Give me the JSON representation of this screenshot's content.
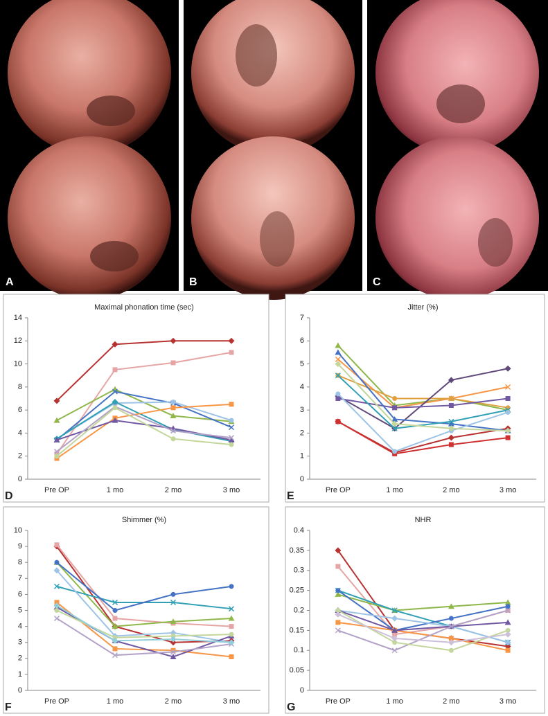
{
  "photos": [
    {
      "label": "A"
    },
    {
      "label": "B"
    },
    {
      "label": "C"
    }
  ],
  "chart_data": [
    {
      "type": "line",
      "panel": "D",
      "title": "Maximal phonation time (sec)",
      "categories": [
        "Pre OP",
        "1 mo",
        "2 mo",
        "3 mo"
      ],
      "ylim": [
        0,
        14
      ],
      "yticks": [
        0,
        2,
        4,
        6,
        8,
        10,
        12,
        14
      ],
      "grid": false,
      "series": [
        {
          "color": "#b83232",
          "values": [
            6.8,
            11.7,
            12,
            12
          ]
        },
        {
          "color": "#e6a5a5",
          "values": [
            2.2,
            9.5,
            10.1,
            11
          ]
        },
        {
          "color": "#8fb74a",
          "values": [
            5.1,
            7.8,
            5.5,
            5.0
          ]
        },
        {
          "color": "#4472c4",
          "values": [
            3.4,
            7.6,
            6.6,
            4.5
          ]
        },
        {
          "color": "#9dc3e6",
          "values": [
            3.5,
            6.6,
            6.7,
            5.1
          ]
        },
        {
          "color": "#31a0b5",
          "values": [
            3.5,
            6.7,
            4.3,
            3.3
          ]
        },
        {
          "color": "#f79646",
          "values": [
            1.8,
            5.3,
            6.2,
            6.5
          ]
        },
        {
          "color": "#7058a3",
          "values": [
            3.4,
            5.1,
            4.4,
            3.4
          ]
        },
        {
          "color": "#b3a2c7",
          "values": [
            2.4,
            6.3,
            4.2,
            3.6
          ]
        },
        {
          "color": "#c3d69b",
          "values": [
            2.0,
            6.2,
            3.5,
            3.0
          ]
        }
      ]
    },
    {
      "type": "line",
      "panel": "E",
      "title": "Jitter (%)",
      "categories": [
        "Pre OP",
        "1 mo",
        "2 mo",
        "3 mo"
      ],
      "ylim": [
        0,
        7
      ],
      "yticks": [
        0,
        1,
        2,
        3,
        4,
        5,
        6,
        7
      ],
      "grid": false,
      "series": [
        {
          "color": "#b83232",
          "values": [
            2.5,
            1.15,
            1.8,
            2.2
          ]
        },
        {
          "color": "#d03030",
          "values": [
            2.5,
            1.1,
            1.5,
            1.8
          ]
        },
        {
          "color": "#8fb74a",
          "values": [
            5.8,
            3.2,
            3.5,
            3.0
          ]
        },
        {
          "color": "#f79646",
          "values": [
            5.2,
            3.1,
            3.5,
            4.0
          ]
        },
        {
          "color": "#e0a040",
          "values": [
            4.5,
            3.5,
            3.5,
            3.1
          ]
        },
        {
          "color": "#604a7b",
          "values": [
            3.6,
            2.2,
            4.3,
            4.8
          ]
        },
        {
          "color": "#7058a3",
          "values": [
            3.5,
            3.1,
            3.2,
            3.5
          ]
        },
        {
          "color": "#4472c4",
          "values": [
            5.5,
            2.6,
            2.4,
            2.1
          ]
        },
        {
          "color": "#31a0b5",
          "values": [
            4.5,
            2.2,
            2.5,
            3.0
          ]
        },
        {
          "color": "#9dc3e6",
          "values": [
            3.7,
            1.2,
            2.1,
            2.9
          ]
        },
        {
          "color": "#c3d69b",
          "values": [
            5.0,
            2.4,
            2.2,
            2.1
          ]
        }
      ]
    },
    {
      "type": "line",
      "panel": "F",
      "title": "Shimmer (%)",
      "categories": [
        "Pre OP",
        "1 mo",
        "2 mo",
        "3 mo"
      ],
      "ylim": [
        0,
        10
      ],
      "yticks": [
        0,
        1,
        2,
        3,
        4,
        5,
        6,
        7,
        8,
        9,
        10
      ],
      "grid": false,
      "series": [
        {
          "color": "#b83232",
          "values": [
            9.0,
            4.0,
            3.0,
            3.1
          ]
        },
        {
          "color": "#e6a5a5",
          "values": [
            9.1,
            4.5,
            4.2,
            4.0
          ]
        },
        {
          "color": "#8fb74a",
          "values": [
            8.0,
            4.0,
            4.3,
            4.5
          ]
        },
        {
          "color": "#31a0b5",
          "values": [
            6.5,
            5.5,
            5.5,
            5.1
          ]
        },
        {
          "color": "#4472c4",
          "values": [
            8.0,
            5.0,
            6.0,
            6.5
          ]
        },
        {
          "color": "#9dc3e6",
          "values": [
            7.5,
            3.4,
            3.6,
            3.0
          ]
        },
        {
          "color": "#f79646",
          "values": [
            5.5,
            2.6,
            2.5,
            2.1
          ]
        },
        {
          "color": "#7058a3",
          "values": [
            5.2,
            3.1,
            2.1,
            3.4
          ]
        },
        {
          "color": "#b3a2c7",
          "values": [
            4.5,
            2.2,
            2.4,
            2.9
          ]
        },
        {
          "color": "#c3d69b",
          "values": [
            5.0,
            3.3,
            3.4,
            3.5
          ]
        },
        {
          "color": "#92cddc",
          "values": [
            5.3,
            3.1,
            3.2,
            3.0
          ]
        }
      ]
    },
    {
      "type": "line",
      "panel": "G",
      "title": "NHR",
      "categories": [
        "Pre OP",
        "1 mo",
        "2 mo",
        "3 mo"
      ],
      "ylim": [
        0,
        0.4
      ],
      "yticks": [
        0,
        0.05,
        0.1,
        0.15,
        0.2,
        0.25,
        0.3,
        0.35,
        0.4
      ],
      "grid": false,
      "series": [
        {
          "color": "#b83232",
          "values": [
            0.35,
            0.15,
            0.13,
            0.11
          ]
        },
        {
          "color": "#e6a5a5",
          "values": [
            0.31,
            0.14,
            0.16,
            0.2
          ]
        },
        {
          "color": "#8fb74a",
          "values": [
            0.24,
            0.2,
            0.21,
            0.22
          ]
        },
        {
          "color": "#31a0b5",
          "values": [
            0.25,
            0.2,
            0.16,
            0.12
          ]
        },
        {
          "color": "#4472c4",
          "values": [
            0.25,
            0.15,
            0.18,
            0.21
          ]
        },
        {
          "color": "#9dc3e6",
          "values": [
            0.2,
            0.18,
            0.16,
            0.12
          ]
        },
        {
          "color": "#f79646",
          "values": [
            0.17,
            0.15,
            0.13,
            0.1
          ]
        },
        {
          "color": "#7058a3",
          "values": [
            0.2,
            0.15,
            0.16,
            0.17
          ]
        },
        {
          "color": "#b3a2c7",
          "values": [
            0.15,
            0.1,
            0.16,
            0.2
          ]
        },
        {
          "color": "#c3d69b",
          "values": [
            0.2,
            0.12,
            0.1,
            0.15
          ]
        },
        {
          "color": "#ccc0da",
          "values": [
            0.19,
            0.13,
            0.12,
            0.14
          ]
        }
      ]
    }
  ]
}
